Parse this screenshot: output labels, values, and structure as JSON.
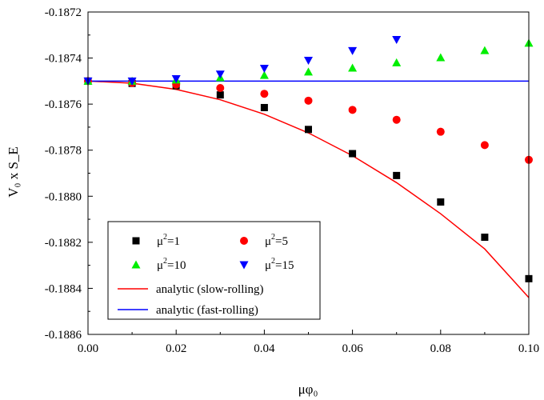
{
  "chart_data": {
    "type": "scatter",
    "title": "",
    "xlabel": "μφ₀",
    "ylabel": "V₀ x S_E",
    "xlim": [
      0.0,
      0.1
    ],
    "ylim": [
      -0.1886,
      -0.1872
    ],
    "x_ticks": [
      "0.00",
      "0.02",
      "0.04",
      "0.06",
      "0.08",
      "0.10"
    ],
    "y_ticks": [
      "-0.1872",
      "-0.1874",
      "-0.1876",
      "-0.1878",
      "-0.1880",
      "-0.1882",
      "-0.1884",
      "-0.1886"
    ],
    "grid": false,
    "legend_position": "bottom-left",
    "series": [
      {
        "name": "μ²=1",
        "legend_base": "μ",
        "legend_sup": "2",
        "legend_rest": "=1",
        "marker": "square",
        "color": "#000000",
        "x": [
          0.0,
          0.01,
          0.02,
          0.03,
          0.04,
          0.05,
          0.06,
          0.07,
          0.08,
          0.09,
          0.1
        ],
        "y": [
          -0.1875,
          -0.18751,
          -0.18752,
          -0.18756,
          -0.187615,
          -0.18771,
          -0.187815,
          -0.18791,
          -0.188025,
          -0.188178,
          -0.188358
        ]
      },
      {
        "name": "μ²=5",
        "legend_base": "μ",
        "legend_sup": "2",
        "legend_rest": "=5",
        "marker": "circle",
        "color": "#ff0000",
        "x": [
          0.0,
          0.01,
          0.02,
          0.03,
          0.04,
          0.05,
          0.06,
          0.07,
          0.08,
          0.09,
          0.1
        ],
        "y": [
          -0.1875,
          -0.187508,
          -0.187515,
          -0.18753,
          -0.187555,
          -0.187585,
          -0.187625,
          -0.187668,
          -0.18772,
          -0.187778,
          -0.187842
        ]
      },
      {
        "name": "μ²=10",
        "legend_base": "μ",
        "legend_sup": "2",
        "legend_rest": "=10",
        "marker": "triangle-up",
        "color": "#00ee00",
        "x": [
          0.0,
          0.01,
          0.02,
          0.03,
          0.04,
          0.05,
          0.06,
          0.07,
          0.08,
          0.09,
          0.1
        ],
        "y": [
          -0.1875,
          -0.1875,
          -0.187495,
          -0.187485,
          -0.187475,
          -0.18746,
          -0.187443,
          -0.18742,
          -0.187398,
          -0.187367,
          -0.187335
        ]
      },
      {
        "name": "μ²=15",
        "legend_base": "μ",
        "legend_sup": "2",
        "legend_rest": "=15",
        "marker": "triangle-down",
        "color": "#0000ff",
        "x": [
          0.0,
          0.01,
          0.02,
          0.03,
          0.04,
          0.05,
          0.06,
          0.07
        ],
        "y": [
          -0.1875,
          -0.1875,
          -0.18749,
          -0.18747,
          -0.187445,
          -0.18741,
          -0.187368,
          -0.18732
        ]
      },
      {
        "name": "analytic (slow-rolling)",
        "marker": "line",
        "color": "#ff0000",
        "x": [
          0.0,
          0.01,
          0.02,
          0.03,
          0.04,
          0.05,
          0.06,
          0.07,
          0.08,
          0.09,
          0.1
        ],
        "y": [
          -0.1875,
          -0.187509,
          -0.187536,
          -0.187581,
          -0.187644,
          -0.187725,
          -0.187824,
          -0.187941,
          -0.188076,
          -0.188229,
          -0.18844
        ]
      },
      {
        "name": "analytic (fast-rolling)",
        "marker": "line",
        "color": "#0000ff",
        "x": [
          0.0,
          0.1
        ],
        "y": [
          -0.1875,
          -0.1875
        ]
      }
    ]
  }
}
